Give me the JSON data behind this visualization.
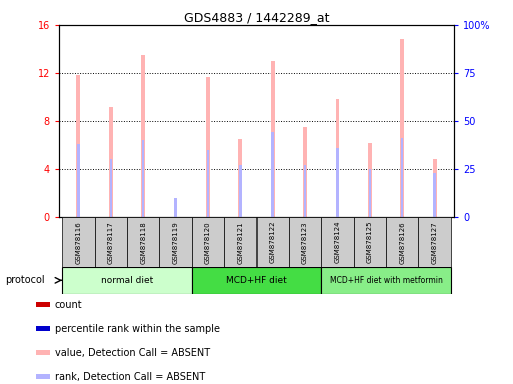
{
  "title": "GDS4883 / 1442289_at",
  "samples": [
    "GSM878116",
    "GSM878117",
    "GSM878118",
    "GSM878119",
    "GSM878120",
    "GSM878121",
    "GSM878122",
    "GSM878123",
    "GSM878124",
    "GSM878125",
    "GSM878126",
    "GSM878127"
  ],
  "value_bars": [
    11.8,
    9.2,
    13.5,
    1.0,
    11.7,
    6.5,
    13.0,
    7.5,
    9.8,
    6.2,
    14.8,
    4.8
  ],
  "rank_bars_pct": [
    38.0,
    30.0,
    40.0,
    10.0,
    35.0,
    27.0,
    44.0,
    27.0,
    36.0,
    25.0,
    41.0,
    23.0
  ],
  "value_color": "#ffb3b3",
  "rank_color": "#b3b3ff",
  "count_color": "#cc0000",
  "percentile_color": "#0000cc",
  "ylim_left": [
    0,
    16
  ],
  "ylim_right": [
    0,
    100
  ],
  "yticks_left": [
    0,
    4,
    8,
    12,
    16
  ],
  "ytick_labels_left": [
    "0",
    "4",
    "8",
    "12",
    "16"
  ],
  "yticks_right": [
    0,
    25,
    50,
    75,
    100
  ],
  "ytick_labels_right": [
    "0",
    "25",
    "50",
    "75",
    "100%"
  ],
  "protocol_groups": [
    {
      "label": "normal diet",
      "start": 0,
      "end": 3,
      "color": "#ccffcc"
    },
    {
      "label": "MCD+HF diet",
      "start": 4,
      "end": 7,
      "color": "#44dd44"
    },
    {
      "label": "MCD+HF diet with metformin",
      "start": 8,
      "end": 11,
      "color": "#88ee88"
    }
  ],
  "legend_items": [
    {
      "label": "count",
      "color": "#cc0000"
    },
    {
      "label": "percentile rank within the sample",
      "color": "#0000cc"
    },
    {
      "label": "value, Detection Call = ABSENT",
      "color": "#ffb3b3"
    },
    {
      "label": "rank, Detection Call = ABSENT",
      "color": "#b3b3ff"
    }
  ]
}
